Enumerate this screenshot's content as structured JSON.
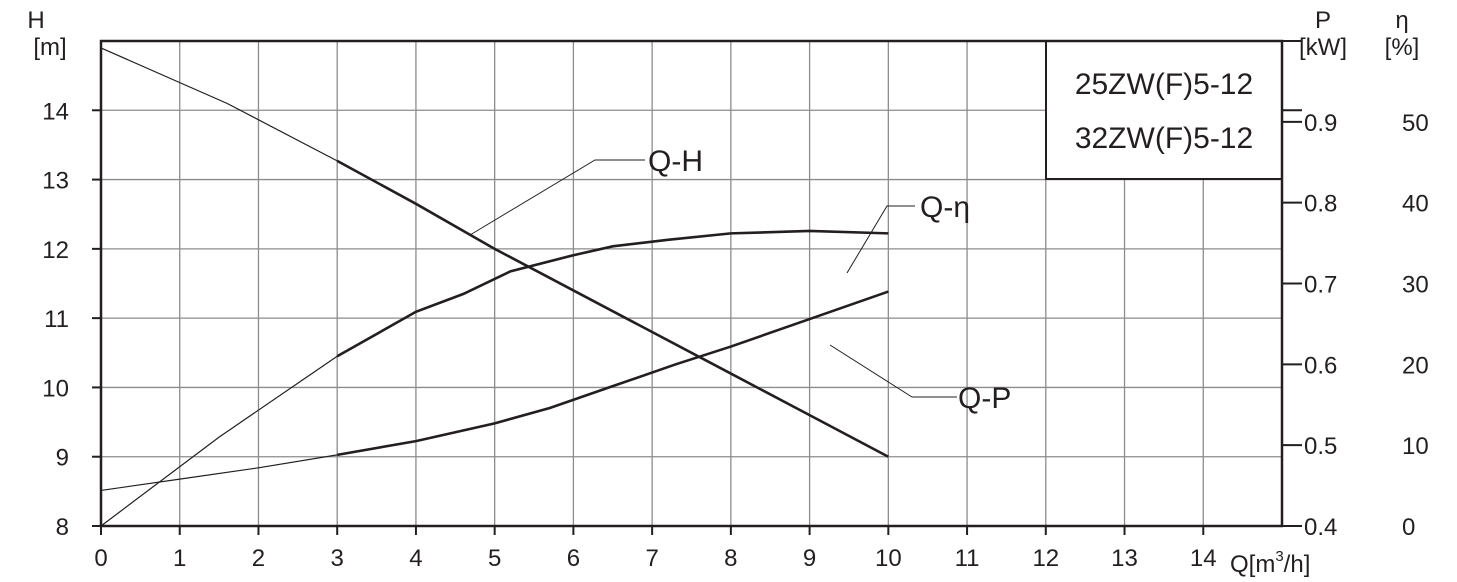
{
  "chart_data": {
    "type": "line",
    "models": [
      "25ZW(F)5-12",
      "32ZW(F)5-12"
    ],
    "x": {
      "label": "Q[m",
      "label_sup": "3",
      "label_end": "/h]",
      "range": [
        0,
        15
      ],
      "ticks": [
        "0",
        "1",
        "2",
        "3",
        "4",
        "5",
        "6",
        "7",
        "8",
        "9",
        "10",
        "11",
        "12",
        "13",
        "14"
      ]
    },
    "y_left": {
      "label_top": "H",
      "label_unit": "[m]",
      "range": [
        8,
        15
      ],
      "ticks": [
        "8",
        "9",
        "10",
        "11",
        "12",
        "13",
        "14"
      ]
    },
    "y_right_p": {
      "label_top": "P",
      "label_unit": "[kW]",
      "range": [
        0.4,
        1.0
      ],
      "ticks": [
        "0.4",
        "0.5",
        "0.6",
        "0.7",
        "0.8",
        "0.9"
      ]
    },
    "y_right_eta": {
      "label_top": "η",
      "label_unit": "[%]",
      "range": [
        0,
        60
      ],
      "ticks": [
        "0",
        "10",
        "20",
        "30",
        "40",
        "50"
      ]
    },
    "grid": true,
    "series": [
      {
        "name": "Q-H",
        "axis": "H",
        "x": [
          0,
          1.6,
          3,
          4,
          5,
          6,
          7,
          8,
          9,
          10
        ],
        "y": [
          14.9,
          14.1,
          13.27,
          12.65,
          12.0,
          11.4,
          10.8,
          10.2,
          9.6,
          9.0
        ]
      },
      {
        "name": "Q-η",
        "axis": "eta",
        "x": [
          0,
          1.5,
          3,
          4,
          4.6,
          5.2,
          6,
          6.5,
          7.2,
          8,
          9,
          10
        ],
        "y": [
          0,
          11,
          21,
          26.5,
          28.7,
          31.5,
          33.5,
          34.6,
          35.4,
          36.2,
          36.5,
          36.2
        ]
      },
      {
        "name": "Q-P",
        "axis": "P",
        "x": [
          0,
          1,
          2,
          3,
          4,
          5,
          5.7,
          6.5,
          7.3,
          8,
          9,
          10
        ],
        "y": [
          0.444,
          0.458,
          0.472,
          0.488,
          0.505,
          0.527,
          0.546,
          0.573,
          0.6,
          0.622,
          0.656,
          0.69
        ]
      }
    ],
    "curve_labels": [
      "Q-H",
      "Q-η",
      "Q-P"
    ]
  }
}
